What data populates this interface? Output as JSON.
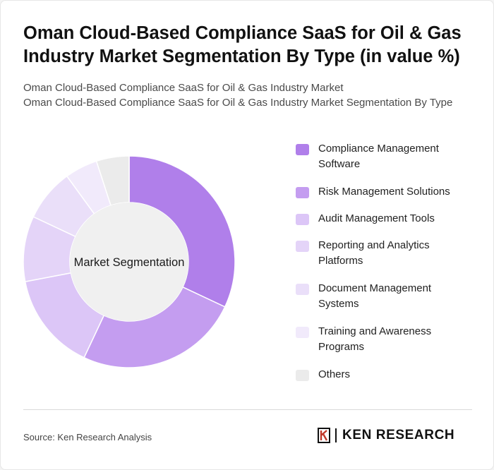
{
  "header": {
    "title": "Oman Cloud-Based Compliance SaaS for Oil & Gas Industry Market Segmentation By Type (in value %)",
    "subtitle_line1": "Oman Cloud-Based Compliance SaaS for Oil & Gas Industry Market",
    "subtitle_line2": "Oman Cloud-Based Compliance SaaS for Oil & Gas Industry Market Segmentation By Type"
  },
  "footer": {
    "source": "Source: Ken Research Analysis",
    "brand": "KEN RESEARCH"
  },
  "chart_data": {
    "type": "pie",
    "donut": true,
    "center_label": "Market Segmentation",
    "legend_position": "right",
    "categories": [
      "Compliance Management Software",
      "Risk Management Solutions",
      "Audit Management Tools",
      "Reporting and Analytics Platforms",
      "Document Management Systems",
      "Training and Awareness Programs",
      "Others"
    ],
    "values": [
      32,
      25,
      15,
      10,
      8,
      5,
      5
    ],
    "colors": [
      "#b07fea",
      "#c49df0",
      "#dcc6f7",
      "#e4d4f8",
      "#eadff9",
      "#f1eafb",
      "#ebebeb"
    ]
  }
}
